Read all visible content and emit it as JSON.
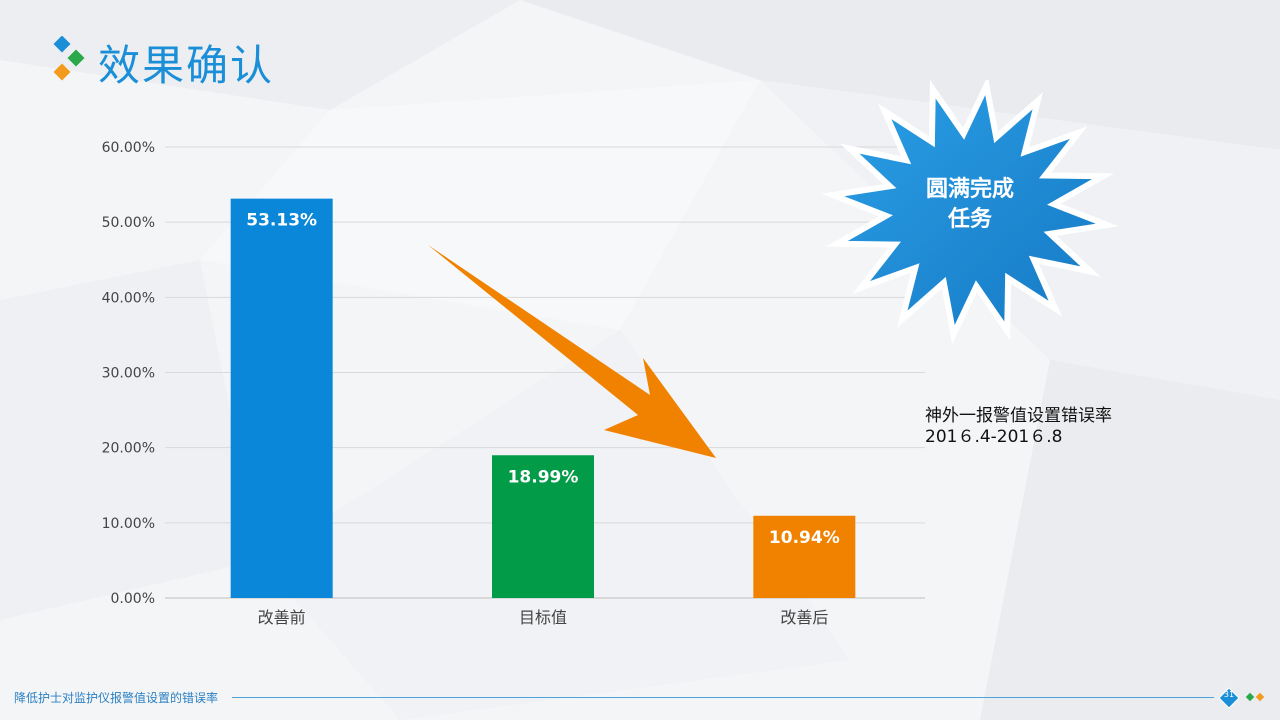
{
  "slide": {
    "title": "效果确认",
    "footer_text": "降低护士对监护仪报警值设置的错误率",
    "page_number": "31"
  },
  "starburst": {
    "line1": "圆满完成",
    "line2": "任务"
  },
  "note": {
    "line1": "神外一报警值设置错误率",
    "line2": "201６.4-201６.8"
  },
  "colors": {
    "title": "#1a8fd8",
    "bar_before": "#0a87d8",
    "bar_target": "#029b48",
    "bar_after": "#f08200",
    "arrow": "#f08200",
    "starburst": "#1e8fd6"
  },
  "chart_data": {
    "type": "bar",
    "categories": [
      "改善前",
      "目标值",
      "改善后"
    ],
    "values": [
      53.13,
      18.99,
      10.94
    ],
    "value_labels": [
      "53.13%",
      "18.99%",
      "10.94%"
    ],
    "bar_colors": [
      "#0a87d8",
      "#029b48",
      "#f08200"
    ],
    "ylim": [
      0,
      60
    ],
    "yticks": [
      0,
      10,
      20,
      30,
      40,
      50,
      60
    ],
    "ytick_labels": [
      "0.00%",
      "10.00%",
      "20.00%",
      "30.00%",
      "40.00%",
      "50.00%",
      "60.00%"
    ],
    "grid": true,
    "legend": false
  }
}
